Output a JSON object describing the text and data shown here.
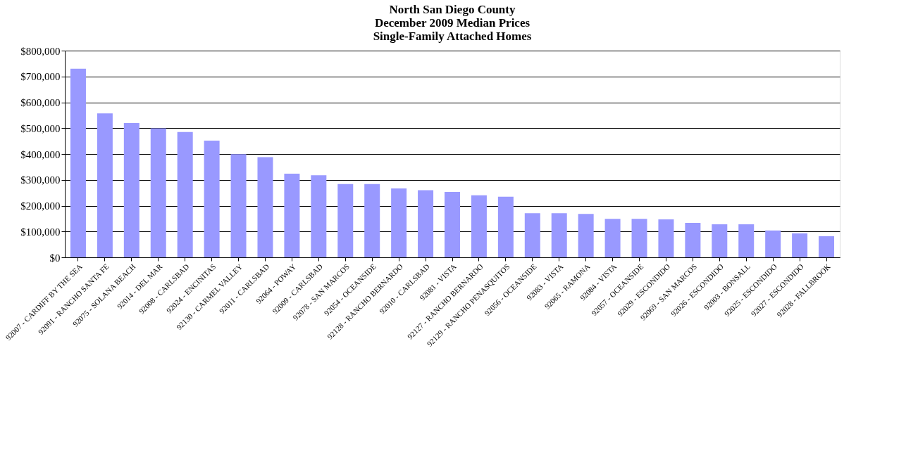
{
  "chart_data": {
    "type": "bar",
    "title": [
      "North San Diego County",
      "December 2009 Median Prices",
      "Single-Family Attached Homes"
    ],
    "categories": [
      "92007 - CARDIFF BY THE SEA",
      "92091 - RANCHO SANTA FE",
      "92075 - SOLANA BEACH",
      "92014 - DEL MAR",
      "92008 - CARLSBAD",
      "92024 - ENCINITAS",
      "92130 - CARMEL VALLEY",
      "92011 - CARLSBAD",
      "92064 - POWAY",
      "92009 - CARLSBAD",
      "92078 - SAN MARCOS",
      "92054 - OCEANSIDE",
      "92128 - RANCHO BERNARDO",
      "92010 - CARLSBAD",
      "92081 - VISTA",
      "92127 - RANCHO BERNARDO",
      "92129 - RANCHO PENASQUITOS",
      "92056 - OCEANSIDE",
      "92083 - VISTA",
      "92065 - RAMONA",
      "92084 - VISTA",
      "92057 - OCEANSIDE",
      "92029 - ESCONDIDO",
      "92069 - SAN MARCOS",
      "92026 - ESCONDIDO",
      "92003 - BONSALL",
      "92025 - ESCONDIDO",
      "92027 - ESCONDIDO",
      "92028 - FALLBROOK"
    ],
    "values": [
      730000,
      557000,
      520000,
      499000,
      485000,
      452000,
      399000,
      388000,
      324000,
      318000,
      284000,
      284000,
      267000,
      260000,
      253000,
      240000,
      235000,
      171000,
      171000,
      168000,
      149000,
      149000,
      147000,
      133000,
      128000,
      128000,
      104000,
      93000,
      82000
    ],
    "color": "#9999ff",
    "ylim": [
      0,
      800000
    ],
    "yticks": [
      {
        "value": 0,
        "label": "$0"
      },
      {
        "value": 100000,
        "label": "$100,000"
      },
      {
        "value": 200000,
        "label": "$200,000"
      },
      {
        "value": 300000,
        "label": "$300,000"
      },
      {
        "value": 400000,
        "label": "$400,000"
      },
      {
        "value": 500000,
        "label": "$500,000"
      },
      {
        "value": 600000,
        "label": "$600,000"
      },
      {
        "value": 700000,
        "label": "$700,000"
      },
      {
        "value": 800000,
        "label": "$800,000"
      }
    ],
    "grid": "y",
    "legend": false
  }
}
